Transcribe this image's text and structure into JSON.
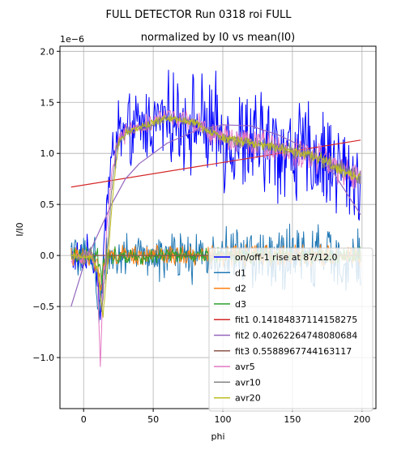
{
  "figure": {
    "suptitle": "FULL DETECTOR Run 0318 roi FULL"
  },
  "chart_data": {
    "type": "line",
    "title": "normalized by I0 vs mean(I0)",
    "xlabel": "phi",
    "ylabel": "I/I0",
    "y_scale_label": "1e−6",
    "xlim": [
      -17,
      210
    ],
    "ylim": [
      -1.5,
      2.05
    ],
    "xticks": [
      0,
      50,
      100,
      150,
      200
    ],
    "xtick_labels": [
      "0",
      "50",
      "100",
      "150",
      "200"
    ],
    "yticks": [
      -1.0,
      -0.5,
      0.0,
      0.5,
      1.0,
      1.5,
      2.0
    ],
    "ytick_labels": [
      "−1.0",
      "−0.5",
      "0.0",
      "0.5",
      "1.0",
      "1.5",
      "2.0"
    ],
    "grid": true,
    "legend_position": "lower-right",
    "x_range": [
      -9,
      199
    ],
    "note_units": "y values in units of 1e-6",
    "series": [
      {
        "name": "on/off-1 rise at 87/12.0",
        "color": "#0000ff",
        "kind": "noisy",
        "trend": [
          [
            -9,
            0.0
          ],
          [
            0,
            -0.05
          ],
          [
            5,
            0.05
          ],
          [
            10,
            -0.2
          ],
          [
            12,
            -0.7
          ],
          [
            15,
            0.3
          ],
          [
            20,
            0.9
          ],
          [
            24,
            1.2
          ],
          [
            30,
            1.15
          ],
          [
            40,
            1.25
          ],
          [
            60,
            1.35
          ],
          [
            80,
            1.3
          ],
          [
            100,
            1.15
          ],
          [
            120,
            1.1
          ],
          [
            140,
            1.05
          ],
          [
            160,
            1.0
          ],
          [
            180,
            0.9
          ],
          [
            199,
            0.75
          ]
        ],
        "noise": [
          [
            -9,
            0.12
          ],
          [
            15,
            0.15
          ],
          [
            20,
            0.25
          ],
          [
            60,
            0.3
          ],
          [
            100,
            0.4
          ],
          [
            199,
            0.35
          ]
        ]
      },
      {
        "name": "d1",
        "color": "#1f77b4",
        "kind": "noisy",
        "trend": [
          [
            -9,
            0.0
          ],
          [
            8,
            0.0
          ],
          [
            11,
            -0.6
          ],
          [
            13,
            -0.3
          ],
          [
            16,
            0.0
          ],
          [
            199,
            -0.02
          ]
        ],
        "noise": [
          [
            -9,
            0.14
          ],
          [
            20,
            0.14
          ],
          [
            100,
            0.2
          ],
          [
            150,
            0.22
          ],
          [
            199,
            0.22
          ]
        ]
      },
      {
        "name": "d2",
        "color": "#ff7f0e",
        "kind": "noisy",
        "trend": [
          [
            -9,
            0.0
          ],
          [
            10,
            -0.05
          ],
          [
            13,
            -0.3
          ],
          [
            16,
            0.0
          ],
          [
            199,
            0.0
          ]
        ],
        "noise": [
          [
            -9,
            0.07
          ],
          [
            199,
            0.08
          ]
        ]
      },
      {
        "name": "d3",
        "color": "#2ca02c",
        "kind": "noisy",
        "trend": [
          [
            -9,
            0.0
          ],
          [
            10,
            0.0
          ],
          [
            13,
            -0.2
          ],
          [
            16,
            0.0
          ],
          [
            199,
            0.0
          ]
        ],
        "noise": [
          [
            -9,
            0.06
          ],
          [
            199,
            0.06
          ]
        ]
      },
      {
        "name": "fit1 0.14184837114158275",
        "color": "#d62728",
        "kind": "smooth",
        "points": [
          [
            -9,
            0.67
          ],
          [
            199,
            1.13
          ]
        ]
      },
      {
        "name": "fit2 0.40262264748080684",
        "color": "#9467bd",
        "kind": "smooth",
        "points": [
          [
            -9,
            -0.5
          ],
          [
            0,
            -0.1
          ],
          [
            10,
            0.2
          ],
          [
            20,
            0.5
          ],
          [
            30,
            0.75
          ],
          [
            40,
            0.9
          ],
          [
            60,
            1.1
          ],
          [
            80,
            1.22
          ],
          [
            100,
            1.28
          ],
          [
            120,
            1.27
          ],
          [
            140,
            1.18
          ],
          [
            160,
            1.05
          ],
          [
            180,
            0.8
          ],
          [
            199,
            0.4
          ]
        ]
      },
      {
        "name": "fit3 0.5588967744163117",
        "color": "#8c564b",
        "kind": "smooth",
        "points": [
          [
            -9,
            0.0
          ],
          [
            199,
            0.0
          ]
        ]
      },
      {
        "name": "avr5",
        "color": "#e377c2",
        "kind": "noisy",
        "trend": [
          [
            -9,
            0.0
          ],
          [
            0,
            -0.02
          ],
          [
            5,
            0.05
          ],
          [
            10,
            -0.2
          ],
          [
            12,
            -1.1
          ],
          [
            14,
            -0.3
          ],
          [
            17,
            0.3
          ],
          [
            20,
            0.8
          ],
          [
            24,
            1.15
          ],
          [
            30,
            1.2
          ],
          [
            40,
            1.25
          ],
          [
            60,
            1.38
          ],
          [
            80,
            1.3
          ],
          [
            100,
            1.15
          ],
          [
            120,
            1.1
          ],
          [
            140,
            1.05
          ],
          [
            160,
            1.0
          ],
          [
            180,
            0.88
          ],
          [
            199,
            0.75
          ]
        ],
        "noise": [
          [
            -9,
            0.06
          ],
          [
            199,
            0.12
          ]
        ]
      },
      {
        "name": "avr10",
        "color": "#7f7f7f",
        "kind": "noisy",
        "trend": [
          [
            -9,
            0.0
          ],
          [
            0,
            -0.02
          ],
          [
            5,
            0.05
          ],
          [
            10,
            -0.15
          ],
          [
            13,
            -0.55
          ],
          [
            16,
            -0.1
          ],
          [
            20,
            0.6
          ],
          [
            24,
            1.1
          ],
          [
            30,
            1.2
          ],
          [
            40,
            1.25
          ],
          [
            60,
            1.35
          ],
          [
            80,
            1.3
          ],
          [
            100,
            1.15
          ],
          [
            120,
            1.1
          ],
          [
            140,
            1.05
          ],
          [
            160,
            1.0
          ],
          [
            180,
            0.88
          ],
          [
            199,
            0.75
          ]
        ],
        "noise": [
          [
            -9,
            0.03
          ],
          [
            199,
            0.06
          ]
        ]
      },
      {
        "name": "avr20",
        "color": "#bcbd22",
        "kind": "noisy",
        "trend": [
          [
            -9,
            0.0
          ],
          [
            0,
            -0.02
          ],
          [
            5,
            0.0
          ],
          [
            10,
            -0.15
          ],
          [
            14,
            -0.6
          ],
          [
            17,
            -0.1
          ],
          [
            21,
            0.6
          ],
          [
            25,
            1.1
          ],
          [
            30,
            1.2
          ],
          [
            40,
            1.25
          ],
          [
            60,
            1.35
          ],
          [
            80,
            1.3
          ],
          [
            100,
            1.15
          ],
          [
            120,
            1.1
          ],
          [
            140,
            1.05
          ],
          [
            160,
            1.0
          ],
          [
            180,
            0.88
          ],
          [
            199,
            0.75
          ]
        ],
        "noise": [
          [
            -9,
            0.02
          ],
          [
            199,
            0.04
          ]
        ]
      }
    ]
  }
}
